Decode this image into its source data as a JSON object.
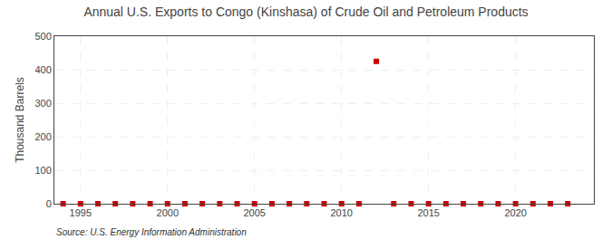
{
  "chart_data": {
    "type": "scatter",
    "title": "Annual U.S. Exports to Congo (Kinshasa) of Crude Oil and Petroleum Products",
    "y_label": "Thousand Barrels",
    "annotations": [
      "Source: U.S. Energy Information Administration"
    ],
    "x": [
      1994,
      1995,
      1996,
      1997,
      1998,
      1999,
      2000,
      2001,
      2002,
      2003,
      2004,
      2005,
      2006,
      2007,
      2008,
      2009,
      2010,
      2011,
      2012,
      2013,
      2014,
      2015,
      2016,
      2017,
      2018,
      2019,
      2020,
      2021,
      2022,
      2023
    ],
    "values": [
      0,
      0,
      0,
      0,
      0,
      0,
      0,
      0,
      0,
      0,
      0,
      0,
      0,
      0,
      0,
      0,
      0,
      0,
      425,
      0,
      0,
      0,
      0,
      0,
      0,
      0,
      0,
      0,
      0,
      0
    ],
    "color": "#cc0000",
    "marker": "square",
    "xlim": [
      1993.5,
      2024.5
    ],
    "xticks": [
      1995,
      2000,
      2005,
      2010,
      2015,
      2020
    ],
    "ylim": [
      0,
      500
    ],
    "yticks": [
      0,
      100,
      200,
      300,
      400,
      500
    ],
    "grid": true
  }
}
